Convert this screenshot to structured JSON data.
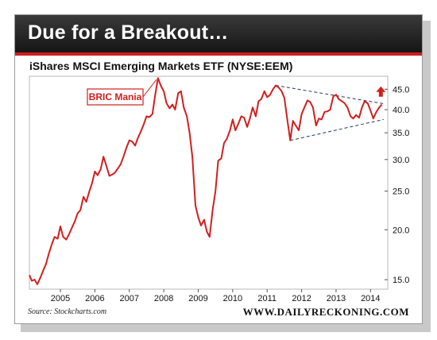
{
  "header": {
    "title": "Due for a Breakout…"
  },
  "footer": {
    "source": "Source: Stockcharts.com",
    "brand": "WWW.DAILYRECKONING.COM"
  },
  "colors": {
    "line": "#d21f1f",
    "accent": "#cc1f1f",
    "trendline": "#1f3b5a"
  },
  "chart_data": {
    "type": "line",
    "title": "iShares MSCI Emerging Markets ETF (NYSE:EEM)",
    "y_scale": "log",
    "ylim": [
      14.2,
      48.5
    ],
    "xlim": [
      2004.1,
      2014.5
    ],
    "x_ticks": [
      "2005",
      "2006",
      "2007",
      "2008",
      "2009",
      "2010",
      "2011",
      "2012",
      "2013",
      "2014"
    ],
    "x_tick_values": [
      2005,
      2006,
      2007,
      2008,
      2009,
      2010,
      2011,
      2012,
      2013,
      2014
    ],
    "y_ticks": [
      "15.0",
      "20.0",
      "25.0",
      "30.0",
      "35.0",
      "40.0",
      "45.0"
    ],
    "y_tick_values": [
      15,
      20,
      25,
      30,
      35,
      40,
      45
    ],
    "series": [
      {
        "points": [
          [
            2004.1,
            15.4
          ],
          [
            2004.17,
            14.9
          ],
          [
            2004.25,
            15.0
          ],
          [
            2004.33,
            14.6
          ],
          [
            2004.42,
            15.2
          ],
          [
            2004.5,
            15.8
          ],
          [
            2004.58,
            16.4
          ],
          [
            2004.67,
            17.5
          ],
          [
            2004.75,
            18.4
          ],
          [
            2004.83,
            19.2
          ],
          [
            2004.92,
            19.0
          ],
          [
            2005.0,
            20.4
          ],
          [
            2005.08,
            19.2
          ],
          [
            2005.17,
            18.9
          ],
          [
            2005.25,
            19.5
          ],
          [
            2005.33,
            20.2
          ],
          [
            2005.42,
            21.0
          ],
          [
            2005.5,
            22.0
          ],
          [
            2005.58,
            22.4
          ],
          [
            2005.67,
            24.2
          ],
          [
            2005.75,
            23.5
          ],
          [
            2005.83,
            24.8
          ],
          [
            2005.92,
            26.2
          ],
          [
            2006.0,
            28.0
          ],
          [
            2006.08,
            27.4
          ],
          [
            2006.17,
            28.4
          ],
          [
            2006.25,
            30.5
          ],
          [
            2006.33,
            29.0
          ],
          [
            2006.42,
            27.3
          ],
          [
            2006.5,
            27.5
          ],
          [
            2006.58,
            27.8
          ],
          [
            2006.67,
            28.5
          ],
          [
            2006.75,
            29.2
          ],
          [
            2006.83,
            30.5
          ],
          [
            2006.92,
            32.2
          ],
          [
            2007.0,
            33.5
          ],
          [
            2007.08,
            33.3
          ],
          [
            2007.17,
            32.5
          ],
          [
            2007.25,
            34.0
          ],
          [
            2007.33,
            35.2
          ],
          [
            2007.42,
            36.8
          ],
          [
            2007.5,
            38.5
          ],
          [
            2007.58,
            38.3
          ],
          [
            2007.67,
            39.0
          ],
          [
            2007.75,
            43.5
          ],
          [
            2007.83,
            48.0
          ],
          [
            2007.92,
            45.8
          ],
          [
            2008.0,
            44.5
          ],
          [
            2008.08,
            41.5
          ],
          [
            2008.17,
            40.3
          ],
          [
            2008.25,
            41.2
          ],
          [
            2008.33,
            40.0
          ],
          [
            2008.42,
            44.0
          ],
          [
            2008.5,
            44.5
          ],
          [
            2008.58,
            40.5
          ],
          [
            2008.67,
            38.5
          ],
          [
            2008.75,
            35.0
          ],
          [
            2008.83,
            30.5
          ],
          [
            2008.92,
            23.0
          ],
          [
            2009.0,
            21.5
          ],
          [
            2009.08,
            20.5
          ],
          [
            2009.17,
            21.2
          ],
          [
            2009.25,
            19.8
          ],
          [
            2009.33,
            19.2
          ],
          [
            2009.42,
            22.5
          ],
          [
            2009.5,
            25.0
          ],
          [
            2009.58,
            29.8
          ],
          [
            2009.67,
            30.2
          ],
          [
            2009.75,
            33.0
          ],
          [
            2009.83,
            33.8
          ],
          [
            2009.92,
            35.5
          ],
          [
            2010.0,
            37.8
          ],
          [
            2010.08,
            35.5
          ],
          [
            2010.17,
            37.0
          ],
          [
            2010.25,
            38.5
          ],
          [
            2010.33,
            38.2
          ],
          [
            2010.42,
            36.2
          ],
          [
            2010.5,
            38.0
          ],
          [
            2010.58,
            40.5
          ],
          [
            2010.67,
            38.5
          ],
          [
            2010.75,
            42.0
          ],
          [
            2010.83,
            42.5
          ],
          [
            2010.92,
            44.5
          ],
          [
            2011.0,
            43.0
          ],
          [
            2011.08,
            43.5
          ],
          [
            2011.17,
            45.0
          ],
          [
            2011.25,
            46.0
          ],
          [
            2011.33,
            45.5
          ],
          [
            2011.42,
            44.5
          ],
          [
            2011.5,
            42.8
          ],
          [
            2011.58,
            38.0
          ],
          [
            2011.67,
            33.5
          ],
          [
            2011.75,
            37.5
          ],
          [
            2011.83,
            36.5
          ],
          [
            2011.92,
            35.5
          ],
          [
            2012.0,
            39.0
          ],
          [
            2012.08,
            40.5
          ],
          [
            2012.17,
            42.2
          ],
          [
            2012.25,
            41.8
          ],
          [
            2012.33,
            40.5
          ],
          [
            2012.42,
            36.5
          ],
          [
            2012.5,
            38.0
          ],
          [
            2012.58,
            37.8
          ],
          [
            2012.67,
            39.5
          ],
          [
            2012.75,
            39.6
          ],
          [
            2012.83,
            40.0
          ],
          [
            2012.92,
            43.2
          ],
          [
            2013.0,
            43.6
          ],
          [
            2013.08,
            42.5
          ],
          [
            2013.17,
            42.0
          ],
          [
            2013.25,
            41.5
          ],
          [
            2013.33,
            40.5
          ],
          [
            2013.42,
            38.5
          ],
          [
            2013.5,
            38.0
          ],
          [
            2013.58,
            38.8
          ],
          [
            2013.67,
            38.2
          ],
          [
            2013.75,
            40.5
          ],
          [
            2013.83,
            42.0
          ],
          [
            2013.92,
            41.5
          ],
          [
            2014.0,
            39.8
          ],
          [
            2014.08,
            38.0
          ],
          [
            2014.17,
            39.5
          ],
          [
            2014.25,
            40.5
          ],
          [
            2014.33,
            41.2
          ]
        ]
      }
    ],
    "trendlines": [
      {
        "from": [
          2011.25,
          46.0
        ],
        "to": [
          2014.38,
          41.4
        ]
      },
      {
        "from": [
          2011.67,
          33.5
        ],
        "to": [
          2014.38,
          37.8
        ]
      }
    ],
    "annotations": [
      {
        "text": "BRIC Mania",
        "target": [
          2007.83,
          48.0
        ]
      }
    ],
    "breakout_arrow": {
      "x": 2014.3,
      "y": 44.3
    },
    "grid": false
  }
}
